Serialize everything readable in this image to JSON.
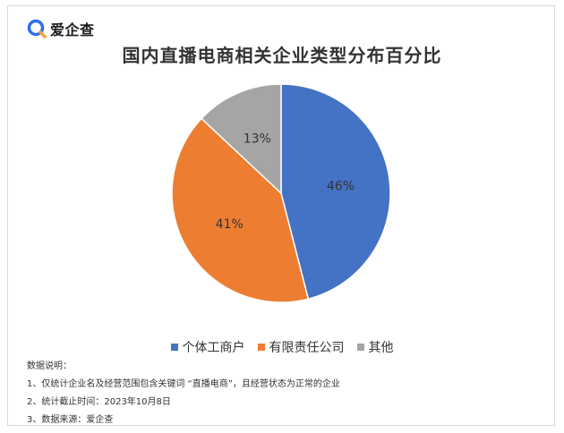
{
  "logo": {
    "text": "爱企查",
    "accent": "#2f6ff0",
    "accent2": "#f5a623"
  },
  "chart_data": {
    "type": "pie",
    "title": "国内直播电商相关企业类型分布百分比",
    "series": [
      {
        "name": "个体工商户",
        "value": 46,
        "label": "46%",
        "color": "#4472c4"
      },
      {
        "name": "有限责任公司",
        "value": 41,
        "label": "41%",
        "color": "#ed7d31"
      },
      {
        "name": "其他",
        "value": 13,
        "label": "13%",
        "color": "#a5a5a5"
      }
    ],
    "legend_position": "bottom"
  },
  "notes": {
    "heading": "数据说明：",
    "lines": [
      "1、仅统计企业名及经营范围包含关键词 “直播电商”，且经营状态为正常的企业",
      "2、统计截止时间：2023年10月8日",
      "3、数据来源：爱企查"
    ]
  }
}
